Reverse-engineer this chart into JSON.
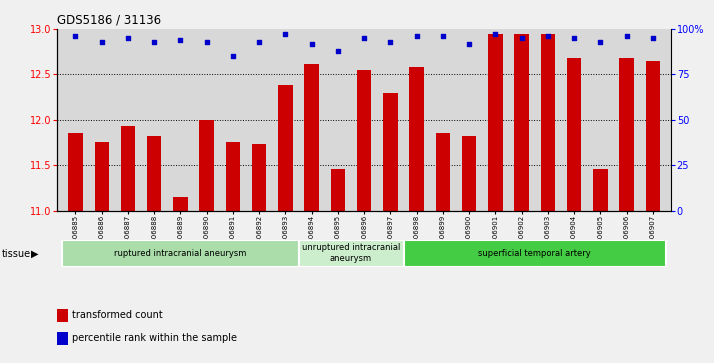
{
  "title": "GDS5186 / 31136",
  "samples": [
    "GSM1306885",
    "GSM1306886",
    "GSM1306887",
    "GSM1306888",
    "GSM1306889",
    "GSM1306890",
    "GSM1306891",
    "GSM1306892",
    "GSM1306893",
    "GSM1306894",
    "GSM1306895",
    "GSM1306896",
    "GSM1306897",
    "GSM1306898",
    "GSM1306899",
    "GSM1306900",
    "GSM1306901",
    "GSM1306902",
    "GSM1306903",
    "GSM1306904",
    "GSM1306905",
    "GSM1306906",
    "GSM1306907"
  ],
  "bar_values": [
    11.85,
    11.75,
    11.93,
    11.82,
    11.15,
    12.0,
    11.76,
    11.73,
    12.38,
    12.62,
    11.46,
    12.55,
    12.3,
    12.58,
    11.85,
    11.82,
    12.95,
    12.95,
    12.95,
    12.68,
    11.46,
    12.68,
    12.65
  ],
  "percentile_values": [
    96,
    93,
    95,
    93,
    94,
    93,
    85,
    93,
    97,
    92,
    88,
    95,
    93,
    96,
    96,
    92,
    97,
    95,
    96,
    95,
    93,
    96,
    95
  ],
  "bar_color": "#cc0000",
  "dot_color": "#0000cc",
  "ylim_left": [
    11,
    13
  ],
  "ylim_right": [
    0,
    100
  ],
  "yticks_left": [
    11,
    11.5,
    12,
    12.5,
    13
  ],
  "yticks_right": [
    0,
    25,
    50,
    75,
    100
  ],
  "grid_values": [
    11.5,
    12.0,
    12.5
  ],
  "tissue_groups": [
    {
      "label": "ruptured intracranial aneurysm",
      "start": 0,
      "end": 9,
      "color": "#aaddaa"
    },
    {
      "label": "unruptured intracranial\naneurysm",
      "start": 9,
      "end": 13,
      "color": "#cceecc"
    },
    {
      "label": "superficial temporal artery",
      "start": 13,
      "end": 23,
      "color": "#44cc44"
    }
  ],
  "legend_items": [
    {
      "label": "transformed count",
      "color": "#cc0000"
    },
    {
      "label": "percentile rank within the sample",
      "color": "#0000cc"
    }
  ],
  "tissue_label": "tissue",
  "fig_bg": "#f0f0f0",
  "plot_bg": "#d8d8d8"
}
